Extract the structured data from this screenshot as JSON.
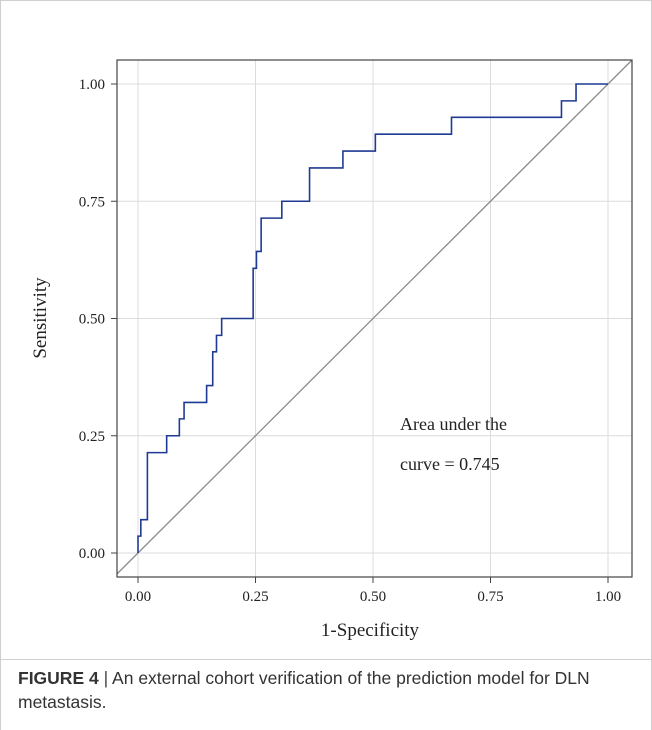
{
  "chart_data": {
    "type": "line",
    "title": "",
    "xlabel": "1-Specificity",
    "ylabel": "Sensitivity",
    "xlim": [
      0,
      1
    ],
    "ylim": [
      0,
      1
    ],
    "x_ticks": [
      "0.00",
      "0.25",
      "0.50",
      "0.75",
      "1.00"
    ],
    "y_ticks": [
      "0.00",
      "0.25",
      "0.50",
      "0.75",
      "1.00"
    ],
    "grid": true,
    "series": [
      {
        "name": "",
        "color": "#1f3a93",
        "style": "step",
        "points": [
          [
            0.0,
            0.0
          ],
          [
            0.0,
            0.036
          ],
          [
            0.006,
            0.036
          ],
          [
            0.006,
            0.071
          ],
          [
            0.02,
            0.071
          ],
          [
            0.02,
            0.214
          ],
          [
            0.061,
            0.214
          ],
          [
            0.061,
            0.25
          ],
          [
            0.088,
            0.25
          ],
          [
            0.088,
            0.286
          ],
          [
            0.098,
            0.286
          ],
          [
            0.098,
            0.321
          ],
          [
            0.146,
            0.321
          ],
          [
            0.146,
            0.357
          ],
          [
            0.159,
            0.357
          ],
          [
            0.159,
            0.429
          ],
          [
            0.167,
            0.429
          ],
          [
            0.167,
            0.464
          ],
          [
            0.178,
            0.464
          ],
          [
            0.178,
            0.5
          ],
          [
            0.245,
            0.5
          ],
          [
            0.245,
            0.607
          ],
          [
            0.252,
            0.607
          ],
          [
            0.252,
            0.643
          ],
          [
            0.262,
            0.643
          ],
          [
            0.262,
            0.714
          ],
          [
            0.306,
            0.714
          ],
          [
            0.306,
            0.75
          ],
          [
            0.365,
            0.75
          ],
          [
            0.365,
            0.821
          ],
          [
            0.436,
            0.821
          ],
          [
            0.436,
            0.857
          ],
          [
            0.505,
            0.857
          ],
          [
            0.505,
            0.893
          ],
          [
            0.667,
            0.893
          ],
          [
            0.667,
            0.929
          ],
          [
            0.824,
            0.929
          ],
          [
            0.901,
            0.929
          ],
          [
            0.901,
            0.964
          ],
          [
            0.932,
            0.964
          ],
          [
            0.932,
            1.0
          ],
          [
            1.0,
            1.0
          ]
        ]
      },
      {
        "name": "",
        "color": "#8a8a8a",
        "style": "reference",
        "points": [
          [
            -0.1,
            -0.1
          ],
          [
            1.1,
            1.1
          ]
        ]
      }
    ],
    "annotation": {
      "line1": "Area under the",
      "line2": "curve = 0.745"
    }
  },
  "caption": {
    "label": "FIGURE 4",
    "separator": "|",
    "text": "An external cohort verification of the prediction model for DLN metastasis."
  }
}
